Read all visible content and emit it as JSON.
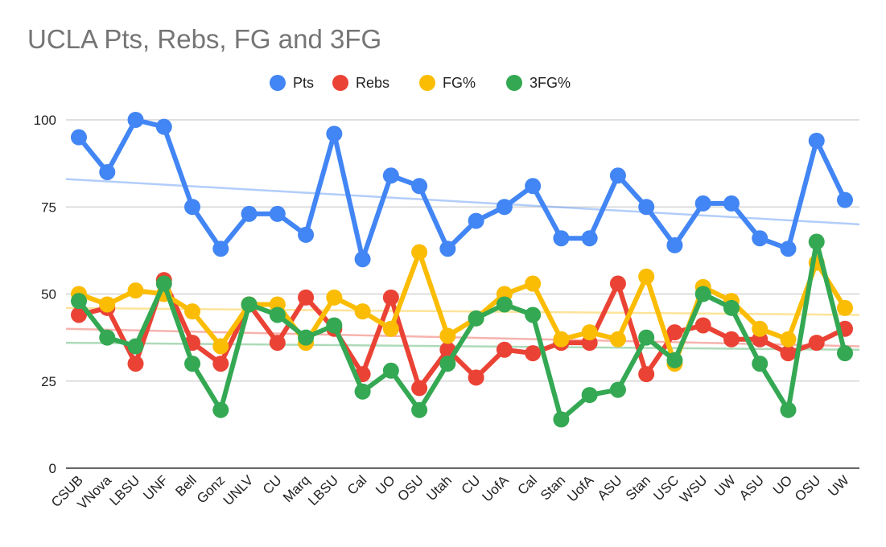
{
  "chart_data": {
    "type": "line",
    "title": "UCLA Pts, Rebs, FG and 3FG",
    "legend_position": "top",
    "grid": true,
    "ylim": [
      0,
      100
    ],
    "yticks": [
      "0",
      "25",
      "50",
      "75",
      "100"
    ],
    "categories": [
      "CSUB",
      "VNova",
      "LBSU",
      "UNF",
      "Bell",
      "Gonz",
      "UNLV",
      "CU",
      "Marq",
      "LBSU",
      "Cal",
      "UO",
      "OSU",
      "Utah",
      "CU",
      "UofA",
      "Cal",
      "Stan",
      "UofA",
      "ASU",
      "Stan",
      "USC",
      "WSU",
      "UW",
      "ASU",
      "UO",
      "OSU",
      "UW"
    ],
    "series": [
      {
        "name": "Pts",
        "color": "#4285f4",
        "values": [
          95,
          85,
          100,
          98,
          75,
          63,
          73,
          73,
          67,
          96,
          60,
          84,
          81,
          63,
          71,
          75,
          81,
          66,
          66,
          84,
          75,
          64,
          76,
          76,
          66,
          63,
          94,
          77
        ],
        "trendline": [
          83,
          70
        ]
      },
      {
        "name": "Rebs",
        "color": "#ea4335",
        "values": [
          44,
          46,
          30,
          54,
          36,
          30,
          47,
          36,
          49,
          40,
          27,
          49,
          23,
          34,
          26,
          34,
          33,
          36,
          36,
          53,
          27,
          39,
          41,
          37,
          37,
          33,
          36,
          40
        ],
        "trendline": [
          40,
          35
        ]
      },
      {
        "name": "FG%",
        "color": "#fbbc04",
        "values": [
          50,
          47,
          51,
          50,
          45,
          35,
          47,
          47,
          36,
          49,
          45,
          40,
          62,
          38,
          43,
          50,
          53,
          37,
          39,
          37,
          55,
          30,
          52,
          48,
          40,
          37,
          59,
          46
        ],
        "trendline": [
          46,
          44
        ]
      },
      {
        "name": "3FG%",
        "color": "#34a853",
        "values": [
          48,
          37.5,
          35,
          53,
          30,
          16.7,
          47,
          44,
          37.5,
          41,
          22,
          28,
          16.7,
          30,
          43,
          47,
          44,
          14,
          21,
          22.5,
          37.5,
          31,
          50,
          46,
          30,
          16.7,
          65,
          33
        ],
        "trendline": [
          36,
          34
        ]
      }
    ]
  }
}
